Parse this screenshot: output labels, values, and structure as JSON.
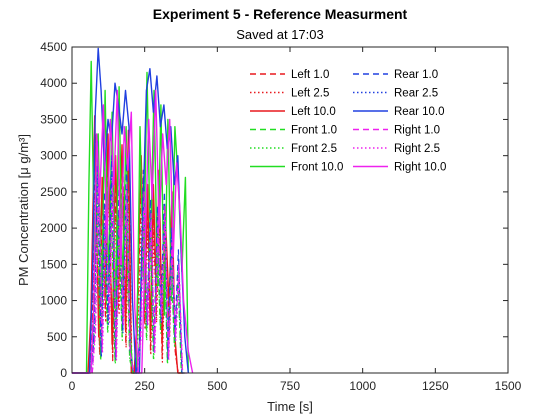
{
  "chart_data": {
    "type": "line",
    "title": "Experiment 5 - Reference Measurment",
    "subtitle": "Saved at 17:03",
    "xlabel": "Time [s]",
    "ylabel": "PM Concentration [μ g/m³]",
    "xlim": [
      0,
      1500
    ],
    "ylim": [
      0,
      4500
    ],
    "xticks": [
      0,
      250,
      500,
      750,
      1000,
      1250,
      1500
    ],
    "yticks": [
      0,
      500,
      1000,
      1500,
      2000,
      2500,
      3000,
      3500,
      4000,
      4500
    ],
    "grid": false,
    "legend_position": "top-right",
    "series": [
      {
        "name": "Left 1.0",
        "color": "#e8191e",
        "dash": "dashed",
        "x": [
          0,
          60,
          70,
          80,
          95,
          105,
          115,
          125,
          140,
          150,
          160,
          175,
          185,
          195,
          205,
          215,
          225,
          240,
          250,
          260,
          270,
          280,
          290,
          300,
          310,
          320,
          335,
          345,
          355,
          365,
          380
        ],
        "y": [
          0,
          0,
          600,
          3300,
          300,
          2400,
          800,
          3000,
          200,
          2600,
          900,
          2900,
          400,
          3100,
          0,
          0,
          600,
          2800,
          700,
          2300,
          300,
          2200,
          800,
          2400,
          200,
          1900,
          600,
          2200,
          300,
          0,
          0
        ]
      },
      {
        "name": "Left 2.5",
        "color": "#e8191e",
        "dash": "dotted",
        "x": [
          0,
          60,
          70,
          82,
          95,
          106,
          116,
          126,
          140,
          151,
          162,
          176,
          186,
          196,
          206,
          216,
          226,
          241,
          251,
          261,
          271,
          281,
          291,
          301,
          311,
          321,
          336,
          346,
          356,
          366,
          380
        ],
        "y": [
          0,
          0,
          500,
          2900,
          250,
          2100,
          700,
          2600,
          150,
          2300,
          800,
          2500,
          350,
          2700,
          0,
          0,
          500,
          2400,
          600,
          2000,
          250,
          1900,
          700,
          2100,
          150,
          1700,
          500,
          1900,
          250,
          0,
          0
        ]
      },
      {
        "name": "Left 10.0",
        "color": "#e8191e",
        "dash": "solid",
        "x": [
          0,
          55,
          65,
          78,
          92,
          104,
          114,
          124,
          138,
          150,
          160,
          172,
          184,
          194,
          204,
          214,
          224,
          238,
          250,
          260,
          270,
          280,
          290,
          300,
          310,
          320,
          334,
          344,
          354,
          364,
          380
        ],
        "y": [
          0,
          0,
          800,
          3550,
          500,
          2700,
          1100,
          3300,
          400,
          3000,
          1200,
          3150,
          600,
          3350,
          0,
          0,
          800,
          3000,
          1000,
          2600,
          500,
          2600,
          1100,
          2800,
          400,
          2300,
          900,
          2500,
          500,
          0,
          0
        ]
      },
      {
        "name": "Front 1.0",
        "color": "#22dd22",
        "dash": "dashed",
        "x": [
          0,
          60,
          72,
          86,
          98,
          110,
          122,
          134,
          148,
          160,
          172,
          186,
          198,
          210,
          220,
          230,
          244,
          256,
          268,
          280,
          292,
          304,
          316,
          328,
          340,
          352,
          364,
          376,
          390
        ],
        "y": [
          0,
          0,
          400,
          2600,
          200,
          2000,
          600,
          2500,
          150,
          2200,
          500,
          2400,
          200,
          0,
          0,
          300,
          2300,
          500,
          2000,
          200,
          1900,
          600,
          2100,
          150,
          1700,
          400,
          1400,
          0,
          0
        ]
      },
      {
        "name": "Front 2.5",
        "color": "#22dd22",
        "dash": "dotted",
        "x": [
          0,
          60,
          73,
          87,
          99,
          111,
          123,
          135,
          149,
          161,
          173,
          187,
          199,
          211,
          221,
          231,
          245,
          257,
          269,
          281,
          293,
          305,
          317,
          329,
          341,
          353,
          365,
          377,
          390
        ],
        "y": [
          0,
          0,
          350,
          2300,
          180,
          1800,
          550,
          2200,
          130,
          1950,
          450,
          2150,
          180,
          0,
          0,
          250,
          2050,
          450,
          1800,
          180,
          1700,
          550,
          1850,
          130,
          1500,
          350,
          1250,
          0,
          0
        ]
      },
      {
        "name": "Front 10.0",
        "color": "#22dd22",
        "dash": "solid",
        "x": [
          0,
          50,
          58,
          66,
          78,
          90,
          102,
          114,
          126,
          138,
          150,
          162,
          174,
          186,
          198,
          210,
          222,
          234,
          246,
          258,
          270,
          282,
          294,
          306,
          318,
          330,
          342,
          354,
          366,
          378,
          390,
          400
        ],
        "y": [
          0,
          0,
          2600,
          4300,
          1500,
          3300,
          900,
          3900,
          1200,
          3600,
          800,
          3950,
          1100,
          3400,
          600,
          0,
          0,
          3400,
          1300,
          4150,
          1600,
          3900,
          1200,
          3700,
          800,
          3500,
          1000,
          3400,
          2600,
          1400,
          2700,
          0
        ]
      },
      {
        "name": "Rear 1.0",
        "color": "#2040e0",
        "dash": "dashed",
        "x": [
          0,
          65,
          75,
          88,
          100,
          112,
          124,
          136,
          150,
          162,
          174,
          188,
          200,
          212,
          222,
          232,
          246,
          258,
          270,
          282,
          294,
          306,
          318,
          330,
          342,
          354,
          366,
          378,
          390
        ],
        "y": [
          0,
          0,
          500,
          3200,
          250,
          2500,
          700,
          3000,
          200,
          2700,
          600,
          2900,
          300,
          0,
          0,
          400,
          2800,
          700,
          2400,
          300,
          2300,
          800,
          2500,
          200,
          2000,
          500,
          1700,
          0,
          0
        ]
      },
      {
        "name": "Rear 2.5",
        "color": "#2040e0",
        "dash": "dotted",
        "x": [
          0,
          65,
          76,
          89,
          101,
          113,
          125,
          137,
          151,
          163,
          175,
          189,
          201,
          213,
          223,
          233,
          247,
          259,
          271,
          283,
          295,
          307,
          319,
          331,
          343,
          355,
          367,
          379,
          390
        ],
        "y": [
          0,
          0,
          450,
          2900,
          220,
          2250,
          650,
          2700,
          180,
          2450,
          550,
          2650,
          270,
          0,
          0,
          350,
          2550,
          650,
          2200,
          270,
          2100,
          700,
          2300,
          180,
          1850,
          450,
          1550,
          0,
          0
        ]
      },
      {
        "name": "Rear 10.0",
        "color": "#2040e0",
        "dash": "solid",
        "x": [
          0,
          60,
          70,
          80,
          90,
          100,
          112,
          124,
          136,
          148,
          160,
          172,
          184,
          196,
          208,
          220,
          232,
          244,
          256,
          268,
          280,
          292,
          304,
          316,
          328,
          340,
          352,
          364,
          376,
          388,
          400
        ],
        "y": [
          0,
          0,
          1200,
          3600,
          4480,
          3900,
          2800,
          3500,
          3200,
          4000,
          3700,
          3300,
          3900,
          3400,
          1000,
          0,
          0,
          2200,
          3900,
          4200,
          3600,
          4100,
          3400,
          3700,
          3100,
          3400,
          2600,
          3000,
          1600,
          500,
          0
        ]
      },
      {
        "name": "Right 1.0",
        "color": "#ee22ee",
        "dash": "dashed",
        "x": [
          0,
          70,
          80,
          92,
          104,
          116,
          128,
          140,
          152,
          164,
          176,
          188,
          200,
          212,
          224,
          236,
          248,
          260,
          272,
          284,
          296,
          308,
          320,
          332,
          344,
          356,
          368,
          380,
          395
        ],
        "y": [
          0,
          0,
          600,
          2800,
          300,
          2300,
          800,
          2700,
          200,
          2500,
          700,
          2600,
          300,
          0,
          0,
          500,
          2500,
          700,
          2200,
          300,
          2100,
          800,
          2300,
          200,
          1800,
          500,
          1500,
          0,
          0
        ]
      },
      {
        "name": "Right 2.5",
        "color": "#ee22ee",
        "dash": "dotted",
        "x": [
          0,
          70,
          81,
          93,
          105,
          117,
          129,
          141,
          153,
          165,
          177,
          189,
          201,
          213,
          225,
          237,
          249,
          261,
          273,
          285,
          297,
          309,
          321,
          333,
          345,
          357,
          369,
          381,
          395
        ],
        "y": [
          0,
          0,
          550,
          2500,
          270,
          2100,
          700,
          2450,
          180,
          2250,
          650,
          2350,
          270,
          0,
          0,
          450,
          2250,
          650,
          2000,
          270,
          1900,
          700,
          2100,
          180,
          1650,
          450,
          1350,
          0,
          0
        ]
      },
      {
        "name": "Right 10.0",
        "color": "#ee22ee",
        "dash": "solid",
        "x": [
          0,
          65,
          75,
          85,
          95,
          108,
          120,
          132,
          144,
          156,
          168,
          180,
          192,
          204,
          216,
          228,
          240,
          252,
          264,
          276,
          288,
          300,
          312,
          324,
          336,
          348,
          360,
          372,
          384,
          400,
          415
        ],
        "y": [
          0,
          0,
          900,
          3300,
          2400,
          3700,
          1800,
          3500,
          2600,
          3900,
          1500,
          3400,
          2800,
          3600,
          900,
          0,
          0,
          1800,
          3500,
          2400,
          3900,
          2000,
          3300,
          2600,
          3500,
          1600,
          2900,
          2200,
          1000,
          300,
          0
        ]
      }
    ]
  }
}
